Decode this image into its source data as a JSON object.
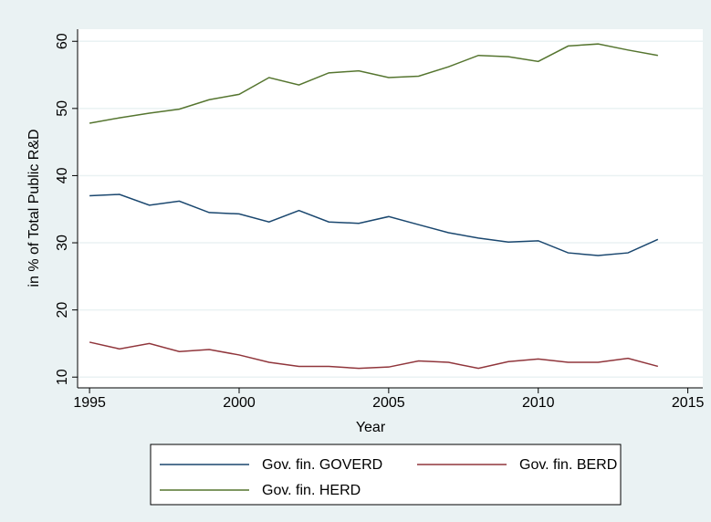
{
  "chart_data": {
    "type": "line",
    "x_label": "Year",
    "y_label": "in % of Total Public R&D",
    "x": [
      1995,
      1996,
      1997,
      1998,
      1999,
      2000,
      2001,
      2002,
      2003,
      2004,
      2005,
      2006,
      2007,
      2008,
      2009,
      2010,
      2011,
      2012,
      2013,
      2014
    ],
    "series": [
      {
        "name": "Gov. fin. GOVERD",
        "color": "#1a476f",
        "values": [
          37.0,
          37.2,
          35.6,
          36.2,
          34.5,
          34.3,
          33.1,
          34.8,
          33.1,
          32.9,
          33.9,
          32.7,
          31.5,
          30.7,
          30.1,
          30.3,
          28.5,
          28.1,
          28.5,
          30.5
        ]
      },
      {
        "name": "Gov. fin. BERD",
        "color": "#90353b",
        "values": [
          15.2,
          14.2,
          15.0,
          13.8,
          14.1,
          13.3,
          12.2,
          11.6,
          11.6,
          11.3,
          11.5,
          12.4,
          12.2,
          11.3,
          12.3,
          12.7,
          12.2,
          12.2,
          12.8,
          11.6
        ]
      },
      {
        "name": "Gov. fin. HERD",
        "color": "#55752f",
        "values": [
          47.8,
          48.6,
          49.3,
          49.9,
          51.3,
          52.1,
          54.6,
          53.5,
          55.3,
          55.6,
          54.6,
          54.8,
          56.2,
          57.9,
          57.7,
          57.0,
          59.3,
          59.6,
          58.7,
          57.9
        ]
      }
    ],
    "xlim": [
      1994.6,
      2015.5
    ],
    "xticks": [
      1995,
      2000,
      2005,
      2010,
      2015
    ],
    "ylim": [
      8.4,
      61.8
    ],
    "yticks": [
      10,
      20,
      30,
      40,
      50,
      60
    ],
    "grid": true
  }
}
